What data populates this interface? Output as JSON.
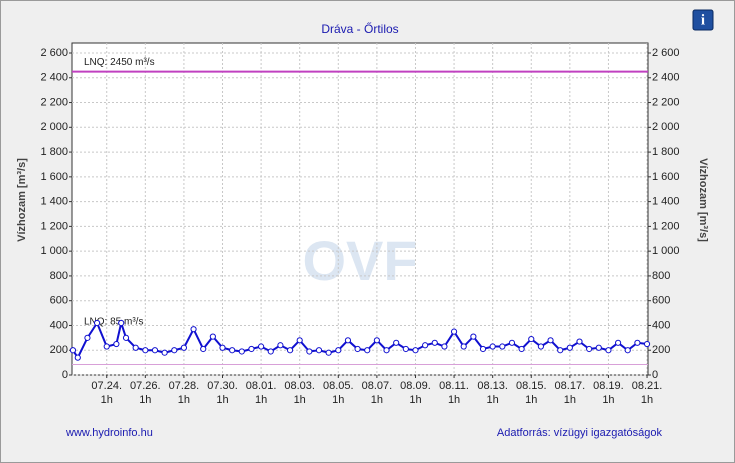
{
  "chart_data": {
    "type": "line",
    "title": "Dráva - Őrtilos",
    "y_label": "Vízhozam [m³/s]",
    "y2_label": "Vízhozam [m³/s]",
    "watermark": "OVF",
    "footer_left": "www.hydroinfo.hu",
    "footer_right": "Adatforrás: vízügyi igazgatóságok",
    "xlim": [
      22.2,
      52.05
    ],
    "xticks": [
      {
        "value": 24,
        "label": "07.24."
      },
      {
        "value": 26,
        "label": "07.26."
      },
      {
        "value": 28,
        "label": "07.28."
      },
      {
        "value": 30,
        "label": "07.30."
      },
      {
        "value": 32,
        "label": "08.01."
      },
      {
        "value": 34,
        "label": "08.03."
      },
      {
        "value": 36,
        "label": "08.05."
      },
      {
        "value": 38,
        "label": "08.07."
      },
      {
        "value": 40,
        "label": "08.09."
      },
      {
        "value": 42,
        "label": "08.11."
      },
      {
        "value": 44,
        "label": "08.13."
      },
      {
        "value": 46,
        "label": "08.15."
      },
      {
        "value": 48,
        "label": "08.17."
      },
      {
        "value": 50,
        "label": "08.19."
      },
      {
        "value": 52,
        "label": "08.21."
      }
    ],
    "xtick_time": "1h",
    "ylim": [
      0,
      2600
    ],
    "yticks": [
      0,
      200,
      400,
      600,
      800,
      {
        "value": 1000,
        "label": "1 000"
      },
      {
        "value": 1200,
        "label": "1 200"
      },
      {
        "value": 1400,
        "label": "1 400"
      },
      {
        "value": 1600,
        "label": "1 600"
      },
      {
        "value": 1800,
        "label": "1 800"
      },
      {
        "value": 2000,
        "label": "2 000"
      },
      {
        "value": 2200,
        "label": "2 200"
      },
      {
        "value": 2400,
        "label": "2 400"
      },
      {
        "value": 2600,
        "label": "2 600"
      }
    ],
    "grid": true,
    "reference_lines": [
      {
        "value": 2450,
        "label": "LNQ: 2450 m³/s",
        "color": "#c040c0"
      },
      {
        "value": 85,
        "label": "LNQ: 85 m³/s",
        "color": "#d8a0d8"
      }
    ],
    "series": [
      {
        "name": "Vízhozam",
        "color": "#1010d0",
        "x": [
          22.25,
          22.5,
          23,
          23.5,
          24,
          24.5,
          24.75,
          25,
          25.5,
          26,
          26.5,
          27,
          27.5,
          28,
          28.5,
          29,
          29.5,
          30,
          30.5,
          31,
          31.5,
          32,
          32.5,
          33,
          33.5,
          34,
          34.5,
          35,
          35.5,
          36,
          36.5,
          37,
          37.5,
          38,
          38.5,
          39,
          39.5,
          40,
          40.5,
          41,
          41.5,
          42,
          42.5,
          43,
          43.5,
          44,
          44.5,
          45,
          45.5,
          46,
          46.5,
          47,
          47.5,
          48,
          48.5,
          49,
          49.5,
          50,
          50.5,
          51,
          51.5,
          52
        ],
        "values": [
          200,
          140,
          300,
          420,
          230,
          250,
          420,
          300,
          220,
          200,
          200,
          180,
          200,
          220,
          370,
          210,
          310,
          220,
          200,
          190,
          210,
          230,
          190,
          240,
          200,
          280,
          190,
          200,
          180,
          200,
          280,
          210,
          200,
          280,
          200,
          260,
          210,
          200,
          240,
          260,
          230,
          350,
          230,
          310,
          210,
          230,
          230,
          260,
          210,
          290,
          230,
          280,
          200,
          220,
          270,
          210,
          220,
          200,
          260,
          200,
          260,
          250
        ]
      }
    ]
  }
}
